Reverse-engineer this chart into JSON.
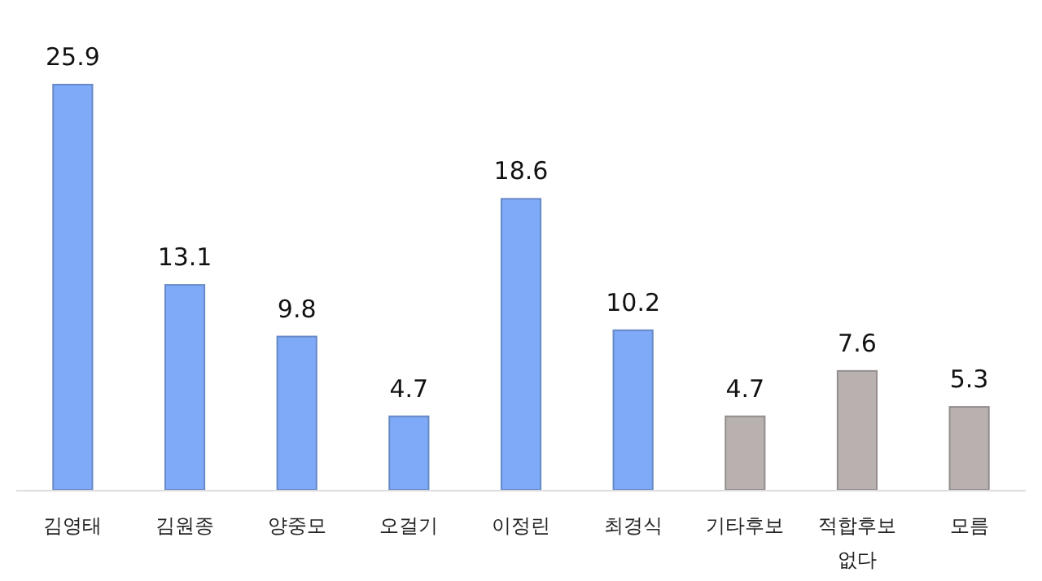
{
  "chart_data": {
    "type": "bar",
    "categories": [
      "김영태",
      "김원종",
      "양중모",
      "오걸기",
      "이정린",
      "최경식",
      "기타후보",
      "적합후보 없다",
      "모름"
    ],
    "values": [
      25.9,
      13.1,
      9.8,
      4.7,
      18.6,
      10.2,
      4.7,
      7.6,
      5.3
    ],
    "colors": [
      "#7faaf7",
      "#7faaf7",
      "#7faaf7",
      "#7faaf7",
      "#7faaf7",
      "#7faaf7",
      "#b9b0b0",
      "#b9b0b0",
      "#b9b0b0"
    ],
    "data_labels": true
  }
}
